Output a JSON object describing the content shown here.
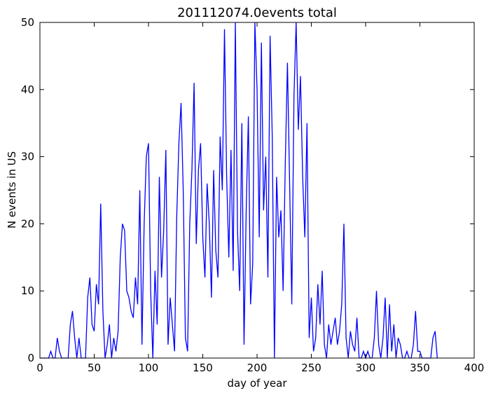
{
  "chart_data": {
    "type": "line",
    "title": "201112074.0events total",
    "x_label": "day of year",
    "y_label": "N events in US",
    "x": [
      0,
      2,
      4,
      6,
      8,
      10,
      12,
      14,
      16,
      18,
      20,
      22,
      24,
      26,
      28,
      30,
      32,
      34,
      36,
      38,
      40,
      42,
      44,
      46,
      48,
      50,
      52,
      54,
      56,
      58,
      60,
      62,
      64,
      66,
      68,
      70,
      72,
      74,
      76,
      78,
      80,
      82,
      84,
      86,
      88,
      90,
      92,
      94,
      96,
      98,
      100,
      102,
      104,
      106,
      108,
      110,
      112,
      114,
      116,
      118,
      120,
      122,
      124,
      126,
      128,
      130,
      132,
      134,
      136,
      138,
      140,
      142,
      144,
      146,
      148,
      150,
      152,
      154,
      156,
      158,
      160,
      162,
      164,
      166,
      168,
      170,
      172,
      174,
      176,
      178,
      180,
      182,
      184,
      186,
      188,
      190,
      192,
      194,
      196,
      198,
      200,
      202,
      204,
      206,
      208,
      210,
      212,
      214,
      216,
      218,
      220,
      222,
      224,
      226,
      228,
      230,
      232,
      234,
      236,
      238,
      240,
      242,
      244,
      246,
      248,
      250,
      252,
      254,
      256,
      258,
      260,
      262,
      264,
      266,
      268,
      270,
      272,
      274,
      276,
      278,
      280,
      282,
      284,
      286,
      288,
      290,
      292,
      294,
      296,
      298,
      300,
      302,
      304,
      306,
      308,
      310,
      312,
      314,
      316,
      318,
      320,
      322,
      324,
      326,
      328,
      330,
      332,
      334,
      336,
      338,
      340,
      342,
      344,
      346,
      348,
      350,
      352,
      354,
      356,
      358,
      360,
      362,
      364,
      366
    ],
    "series": [
      {
        "name": "events",
        "color": "#0000ff",
        "values": [
          0,
          0,
          0,
          0,
          0,
          1,
          0,
          0,
          3,
          1,
          0,
          0,
          0,
          0,
          5,
          7,
          3,
          0,
          3,
          0,
          0,
          0,
          9,
          12,
          5,
          4,
          11,
          8,
          23,
          7,
          0,
          2,
          5,
          0,
          3,
          1,
          4,
          15,
          20,
          19,
          10,
          9,
          7,
          6,
          12,
          8,
          25,
          2,
          20,
          30,
          32,
          10,
          0,
          13,
          5,
          27,
          12,
          19,
          31,
          2,
          9,
          5,
          1,
          21,
          32,
          38,
          25,
          3,
          1,
          20,
          28,
          41,
          17,
          28,
          32,
          18,
          12,
          26,
          20,
          9,
          28,
          16,
          12,
          33,
          25,
          49,
          27,
          15,
          31,
          13,
          50,
          19,
          10,
          35,
          2,
          22,
          36,
          8,
          14,
          50,
          40,
          18,
          47,
          22,
          30,
          12,
          48,
          33,
          0,
          27,
          18,
          22,
          10,
          29,
          44,
          26,
          8,
          39,
          50,
          34,
          42,
          27,
          18,
          35,
          3,
          9,
          1,
          3,
          11,
          5,
          13,
          2,
          0,
          5,
          2,
          4,
          6,
          2,
          4,
          8,
          20,
          3,
          0,
          4,
          2,
          1,
          6,
          0,
          0,
          1,
          0,
          1,
          0,
          0,
          3,
          10,
          2,
          0,
          3,
          9,
          0,
          8,
          1,
          5,
          0,
          3,
          2,
          0,
          0,
          1,
          0,
          0,
          2,
          7,
          1,
          1,
          0,
          0,
          0,
          0,
          0,
          3,
          4,
          0
        ]
      }
    ],
    "xlim": [
      0,
      400
    ],
    "ylim": [
      0,
      50
    ],
    "xticks": [
      0,
      50,
      100,
      150,
      200,
      250,
      300,
      350,
      400
    ],
    "yticks": [
      0,
      10,
      20,
      30,
      40,
      50
    ],
    "grid": false
  }
}
